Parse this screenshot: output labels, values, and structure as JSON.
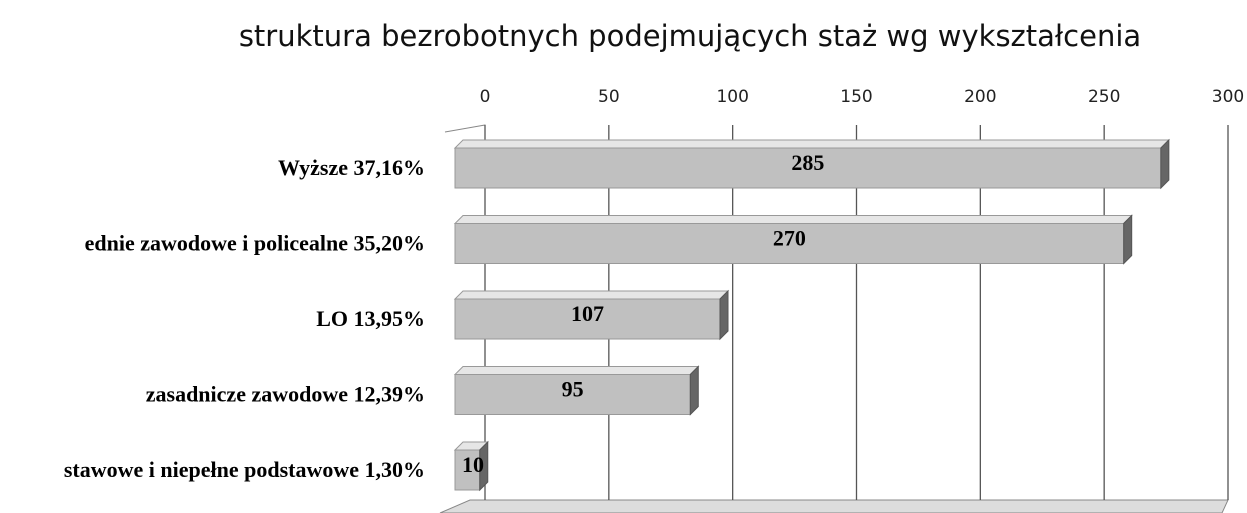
{
  "chart_data": {
    "type": "bar",
    "orientation": "horizontal",
    "title": "struktura bezrobotnych podejmujących staż wg wykształcenia",
    "categories": [
      "Wyższe  37,16%",
      "ednie zawodowe i policealne  35,20%",
      "LO 13,95%",
      "zasadnicze zawodowe 12,39%",
      "stawowe i niepełne podstawowe  1,30%"
    ],
    "values": [
      285,
      270,
      107,
      95,
      10
    ],
    "color": "#c0c0c0",
    "xlim": [
      0,
      300
    ],
    "xticks": [
      0,
      50,
      100,
      150,
      200,
      250,
      300
    ],
    "grid": true
  }
}
